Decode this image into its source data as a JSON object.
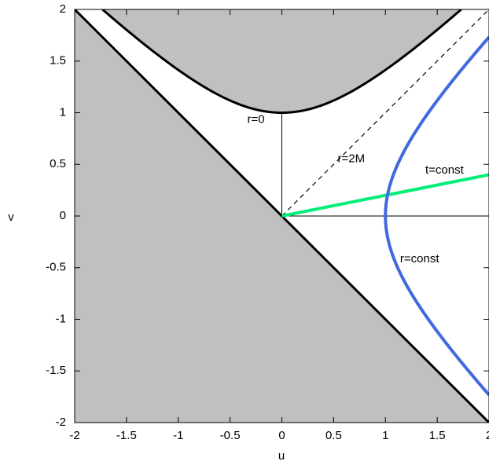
{
  "chart_data": {
    "type": "line",
    "title": "",
    "xlabel": "u",
    "ylabel": "v",
    "xlim": [
      -2,
      2
    ],
    "ylim": [
      -2,
      2
    ],
    "xticks": [
      "-2",
      "-1.5",
      "-1",
      "-0.5",
      "0",
      "0.5",
      "1",
      "1.5",
      "2"
    ],
    "yticks": [
      "2",
      "1.5",
      "1",
      "0.5",
      "0",
      "-0.5",
      "-1",
      "-1.5",
      "-2"
    ],
    "grid": false,
    "legend": "none",
    "regions": [
      {
        "shape": "v<-u",
        "description": "shaded region below line v=-u",
        "color": "#c0c0c0"
      },
      {
        "shape": "v^2-u^2>1",
        "description": "shaded region above hyperbola v^2-u^2=1",
        "color": "#c0c0c0"
      }
    ],
    "series": [
      {
        "style": "thick-black",
        "color": "#000000",
        "x": [
          -2,
          2
        ],
        "y": [
          2,
          -2
        ]
      },
      {
        "style": "thick-black-hyperbola",
        "color": "#000000",
        "equation": "v^2-u^2=1",
        "x": [
          -1.732,
          -1.5,
          -1.0,
          -0.5,
          0,
          0.5,
          1.0,
          1.5,
          1.732
        ],
        "y": [
          2.0,
          1.803,
          1.414,
          1.118,
          1.0,
          1.118,
          1.414,
          1.803,
          2.0
        ]
      },
      {
        "style": "dashed-black",
        "color": "#000000",
        "x": [
          0,
          2
        ],
        "y": [
          0,
          2
        ]
      },
      {
        "style": "thin-black",
        "color": "#000000",
        "x": [
          0,
          0
        ],
        "y": [
          0,
          1
        ]
      },
      {
        "style": "thin-black",
        "color": "#000000",
        "x": [
          0,
          2
        ],
        "y": [
          0,
          0
        ]
      },
      {
        "style": "thick-green",
        "color": "#00ee77",
        "x": [
          0,
          2
        ],
        "y": [
          0,
          0.4
        ]
      },
      {
        "style": "thick-blue-hyperbola",
        "color": "#4169e1",
        "equation": "u^2-v^2=1",
        "x": [
          2.0,
          1.803,
          1.414,
          1.118,
          1.0,
          1.118,
          1.414,
          1.803,
          2.0
        ],
        "y": [
          1.732,
          1.5,
          1.0,
          0.5,
          0,
          -0.5,
          -1.0,
          -1.5,
          -1.732
        ]
      }
    ],
    "annotations": [
      {
        "text": "r=0",
        "x": -0.25,
        "y": 0.93
      },
      {
        "text": "r=2M",
        "x": 0.67,
        "y": 0.55
      },
      {
        "text": "t=const",
        "x": 1.57,
        "y": 0.44
      },
      {
        "text": "r=const",
        "x": 1.33,
        "y": -0.42
      }
    ]
  },
  "colors": {
    "shade": "#c0c0c0",
    "green": "#00ee77",
    "blue": "#4169e1",
    "black": "#000000"
  }
}
